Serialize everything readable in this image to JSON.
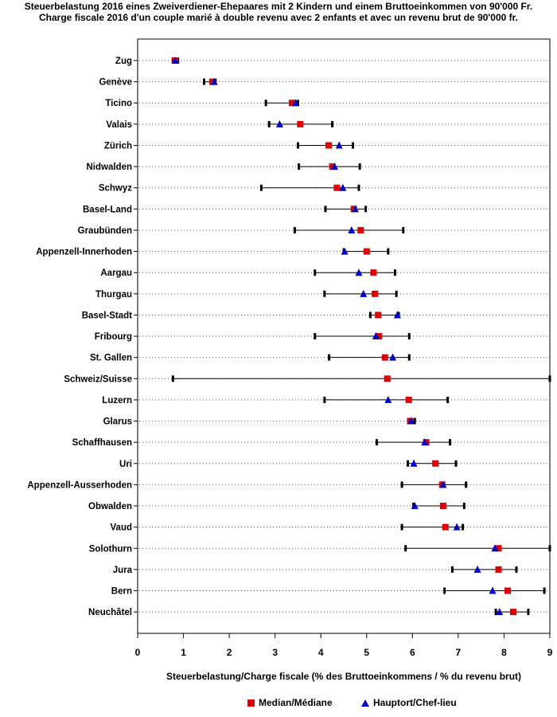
{
  "title_de": "Steuerbelastung 2016 eines Zweiverdiener-Ehepaares mit 2 Kindern und einem Bruttoeinkommen von 90'000 Fr.",
  "title_fr": "Charge fiscale 2016 d'un couple marié à double revenu avec 2 enfants et avec un revenu brut de 90'000 fr.",
  "colors": {
    "median": "#e00000",
    "capital": "#0000cc",
    "range": "#000000"
  },
  "legend": {
    "median": "Median/Médiane",
    "capital": "Hauptort/Chef-lieu"
  },
  "chart_data": {
    "type": "dot-range",
    "title": "Steuerbelastung 2016 eines Zweiverdiener-Ehepaares mit 2 Kindern und einem Bruttoeinkommen von 90'000 Fr.",
    "xlabel": "Steuerbelastung/Charge fiscale (% des Bruttoeinkommens / % du revenu brut)",
    "xlim": [
      0,
      9
    ],
    "xticks": [
      "0",
      "1",
      "2",
      "3",
      "4",
      "5",
      "6",
      "7",
      "8",
      "9"
    ],
    "categories": [
      "Zug",
      "Genève",
      "Ticino",
      "Valais",
      "Zürich",
      "Nidwalden",
      "Schwyz",
      "Basel-Land",
      "Graubünden",
      "Appenzell-Innerhoden",
      "Aargau",
      "Thurgau",
      "Basel-Stadt",
      "Fribourg",
      "St. Gallen",
      "Schweiz/Suisse",
      "Luzern",
      "Glarus",
      "Schaffhausen",
      "Uri",
      "Appenzell-Ausserhoden",
      "Obwalden",
      "Vaud",
      "Solothurn",
      "Jura",
      "Bern",
      "Neuchâtel"
    ],
    "min": [
      0.77,
      1.45,
      2.8,
      2.87,
      3.5,
      3.52,
      2.7,
      4.1,
      3.43,
      4.5,
      3.87,
      4.08,
      5.08,
      3.87,
      4.18,
      0.77,
      4.08,
      5.92,
      5.22,
      5.9,
      5.77,
      6.02,
      5.77,
      5.85,
      6.87,
      6.7,
      7.82
    ],
    "max": [
      0.88,
      1.7,
      3.5,
      4.25,
      4.7,
      4.85,
      4.83,
      4.98,
      5.8,
      5.47,
      5.62,
      5.65,
      5.7,
      5.93,
      5.93,
      9.0,
      6.77,
      6.05,
      6.82,
      6.95,
      7.17,
      7.13,
      7.1,
      9.0,
      8.27,
      8.88,
      8.53
    ],
    "series": [
      {
        "name": "Median/Médiane",
        "values": [
          0.82,
          1.63,
          3.37,
          3.55,
          4.17,
          4.25,
          4.35,
          4.72,
          4.87,
          5.0,
          5.15,
          5.18,
          5.25,
          5.27,
          5.4,
          5.45,
          5.92,
          5.95,
          6.3,
          6.5,
          6.65,
          6.67,
          6.72,
          7.88,
          7.88,
          8.08,
          8.2
        ]
      },
      {
        "name": "Hauptort/Chef-lieu",
        "values": [
          0.82,
          1.67,
          3.45,
          3.1,
          4.4,
          4.3,
          4.48,
          4.75,
          4.67,
          4.52,
          4.83,
          4.93,
          5.67,
          5.2,
          5.57,
          null,
          5.47,
          5.97,
          6.27,
          6.03,
          6.67,
          6.05,
          6.97,
          7.8,
          7.42,
          7.75,
          7.9
        ]
      }
    ]
  }
}
